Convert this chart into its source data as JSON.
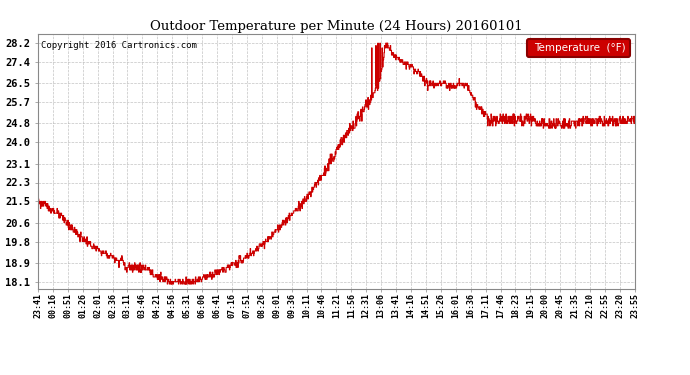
{
  "title": "Outdoor Temperature per Minute (24 Hours) 20160101",
  "copyright": "Copyright 2016 Cartronics.com",
  "legend_label": "Temperature  (°F)",
  "background_color": "#ffffff",
  "plot_bg_color": "#ffffff",
  "grid_color": "#aaaaaa",
  "line_color": "#cc0000",
  "yticks": [
    18.1,
    18.9,
    19.8,
    20.6,
    21.5,
    22.3,
    23.1,
    24.0,
    24.8,
    25.7,
    26.5,
    27.4,
    28.2
  ],
  "ylim": [
    17.8,
    28.6
  ],
  "xtick_labels": [
    "23:41",
    "00:16",
    "00:51",
    "01:26",
    "02:01",
    "02:36",
    "03:11",
    "03:46",
    "04:21",
    "04:56",
    "05:31",
    "06:06",
    "06:41",
    "07:16",
    "07:51",
    "08:26",
    "09:01",
    "09:36",
    "10:11",
    "10:46",
    "11:21",
    "11:56",
    "12:31",
    "13:06",
    "13:41",
    "14:16",
    "14:51",
    "15:26",
    "16:01",
    "16:36",
    "17:11",
    "17:46",
    "18:23",
    "19:15",
    "20:00",
    "20:45",
    "21:35",
    "22:10",
    "22:55",
    "23:20",
    "23:55"
  ],
  "n_points": 1440,
  "waypoints_x": [
    0,
    30,
    60,
    90,
    130,
    160,
    190,
    220,
    250,
    270,
    290,
    310,
    330,
    350,
    380,
    420,
    460,
    500,
    550,
    600,
    650,
    690,
    720,
    750,
    780,
    800,
    820,
    840,
    850,
    870,
    890,
    910,
    940,
    970,
    1000,
    1020,
    1040,
    1060,
    1080,
    1100,
    1120,
    1140,
    1180,
    1220,
    1260,
    1300,
    1340,
    1380,
    1420,
    1440
  ],
  "waypoints_y": [
    21.5,
    21.2,
    20.8,
    20.2,
    19.6,
    19.3,
    19.05,
    18.85,
    18.7,
    18.55,
    18.3,
    18.15,
    18.1,
    18.1,
    18.15,
    18.4,
    18.7,
    19.1,
    19.8,
    20.7,
    21.7,
    22.7,
    23.6,
    24.5,
    25.3,
    25.8,
    26.3,
    28.2,
    27.9,
    27.5,
    27.3,
    27.1,
    26.5,
    26.5,
    26.4,
    26.5,
    26.3,
    25.5,
    25.2,
    25.1,
    25.0,
    24.9,
    24.8,
    24.75,
    24.7,
    24.75,
    24.8,
    24.9,
    25.0,
    25.0
  ]
}
